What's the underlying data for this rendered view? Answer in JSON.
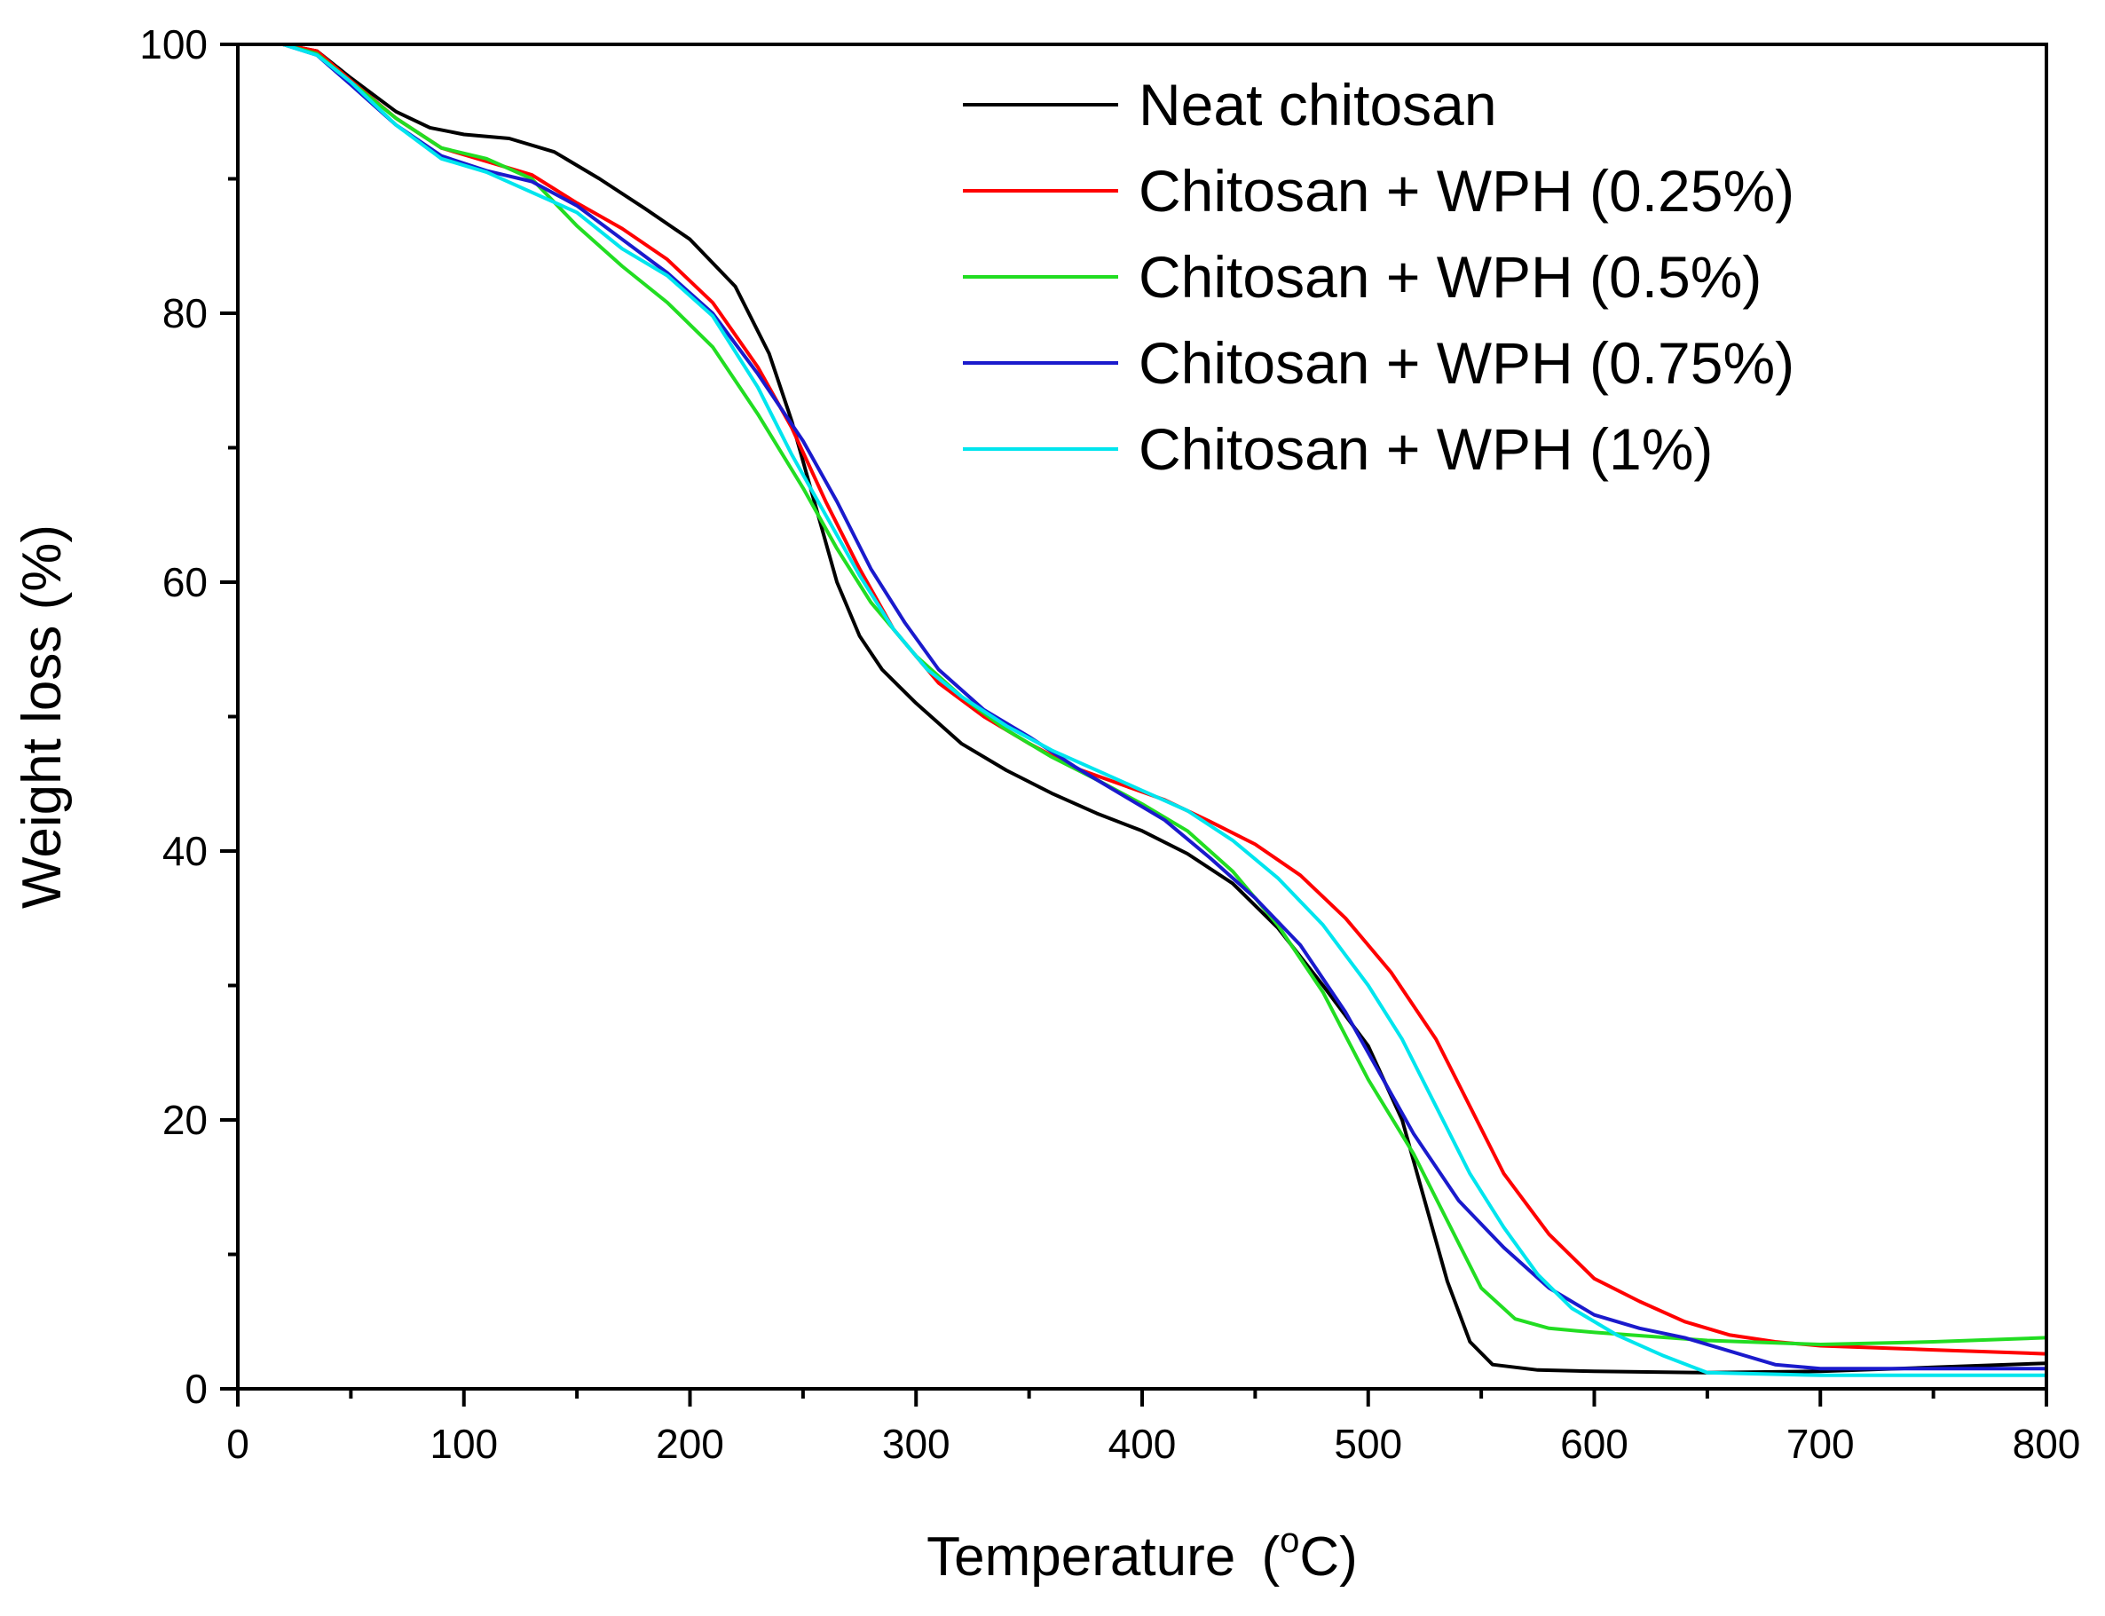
{
  "chart_data": {
    "type": "line",
    "title": "",
    "xlabel": "Temperature",
    "xlabel_unit_open": "(",
    "xlabel_unit_sup": "o",
    "xlabel_unit_main": "C",
    "xlabel_unit_close": ")",
    "ylabel": "Weight loss (%)",
    "xlim": [
      0,
      800
    ],
    "ylim": [
      0,
      100
    ],
    "x_ticks": [
      0,
      100,
      200,
      300,
      400,
      500,
      600,
      700,
      800
    ],
    "y_ticks": [
      0,
      20,
      40,
      60,
      80,
      100
    ],
    "x_tick_labels": [
      "0",
      "100",
      "200",
      "300",
      "400",
      "500",
      "600",
      "700",
      "800"
    ],
    "y_tick_labels": [
      "0",
      "20",
      "40",
      "60",
      "80",
      "100"
    ],
    "grid": false,
    "legend_position": "top-right",
    "series": [
      {
        "name": "Neat chitosan",
        "color": "#000000",
        "points": [
          [
            20,
            100
          ],
          [
            35,
            99.5
          ],
          [
            50,
            97.5
          ],
          [
            70,
            95
          ],
          [
            85,
            93.8
          ],
          [
            100,
            93.3
          ],
          [
            120,
            93
          ],
          [
            140,
            92
          ],
          [
            160,
            90
          ],
          [
            180,
            87.8
          ],
          [
            200,
            85.5
          ],
          [
            220,
            82
          ],
          [
            235,
            77
          ],
          [
            245,
            72
          ],
          [
            255,
            66
          ],
          [
            265,
            60
          ],
          [
            275,
            56
          ],
          [
            285,
            53.5
          ],
          [
            300,
            51
          ],
          [
            320,
            48
          ],
          [
            340,
            46
          ],
          [
            360,
            44.3
          ],
          [
            380,
            42.8
          ],
          [
            400,
            41.5
          ],
          [
            420,
            39.8
          ],
          [
            440,
            37.6
          ],
          [
            460,
            34.3
          ],
          [
            480,
            30
          ],
          [
            500,
            25.5
          ],
          [
            515,
            20
          ],
          [
            525,
            14
          ],
          [
            535,
            8
          ],
          [
            545,
            3.5
          ],
          [
            555,
            1.8
          ],
          [
            575,
            1.4
          ],
          [
            600,
            1.3
          ],
          [
            650,
            1.2
          ],
          [
            700,
            1.3
          ],
          [
            750,
            1.6
          ],
          [
            800,
            1.9
          ]
        ]
      },
      {
        "name": "Chitosan + WPH (0.25%)",
        "color": "#ff0000",
        "points": [
          [
            20,
            100
          ],
          [
            35,
            99.5
          ],
          [
            50,
            97.3
          ],
          [
            70,
            94.5
          ],
          [
            90,
            92.3
          ],
          [
            110,
            91.3
          ],
          [
            130,
            90.3
          ],
          [
            150,
            88.2
          ],
          [
            170,
            86.3
          ],
          [
            190,
            84
          ],
          [
            210,
            80.8
          ],
          [
            230,
            76
          ],
          [
            245,
            71.5
          ],
          [
            260,
            66
          ],
          [
            275,
            61
          ],
          [
            290,
            56.5
          ],
          [
            310,
            52.5
          ],
          [
            330,
            50
          ],
          [
            350,
            48
          ],
          [
            370,
            46.2
          ],
          [
            390,
            45
          ],
          [
            410,
            43.8
          ],
          [
            430,
            42.2
          ],
          [
            450,
            40.5
          ],
          [
            470,
            38.2
          ],
          [
            490,
            35
          ],
          [
            510,
            31
          ],
          [
            530,
            26
          ],
          [
            545,
            21
          ],
          [
            560,
            16
          ],
          [
            580,
            11.5
          ],
          [
            600,
            8.2
          ],
          [
            620,
            6.5
          ],
          [
            640,
            5
          ],
          [
            660,
            4
          ],
          [
            680,
            3.5
          ],
          [
            700,
            3.2
          ],
          [
            750,
            2.9
          ],
          [
            800,
            2.6
          ]
        ]
      },
      {
        "name": "Chitosan + WPH (0.5%)",
        "color": "#22dd22",
        "points": [
          [
            20,
            100
          ],
          [
            35,
            99.3
          ],
          [
            50,
            97.2
          ],
          [
            70,
            94.5
          ],
          [
            90,
            92.3
          ],
          [
            110,
            91.5
          ],
          [
            130,
            90
          ],
          [
            150,
            86.5
          ],
          [
            170,
            83.5
          ],
          [
            190,
            80.8
          ],
          [
            210,
            77.5
          ],
          [
            230,
            72.5
          ],
          [
            250,
            67
          ],
          [
            265,
            62.5
          ],
          [
            280,
            58.5
          ],
          [
            300,
            54.5
          ],
          [
            320,
            51.5
          ],
          [
            340,
            49
          ],
          [
            360,
            47
          ],
          [
            380,
            45.3
          ],
          [
            400,
            43.5
          ],
          [
            420,
            41.5
          ],
          [
            440,
            38.5
          ],
          [
            460,
            34.5
          ],
          [
            480,
            29.5
          ],
          [
            500,
            23
          ],
          [
            520,
            17.5
          ],
          [
            535,
            12.5
          ],
          [
            550,
            7.5
          ],
          [
            565,
            5.2
          ],
          [
            580,
            4.5
          ],
          [
            600,
            4.2
          ],
          [
            650,
            3.6
          ],
          [
            700,
            3.3
          ],
          [
            750,
            3.5
          ],
          [
            800,
            3.8
          ]
        ]
      },
      {
        "name": "Chitosan + WPH (0.75%)",
        "color": "#1a1acc",
        "points": [
          [
            20,
            100
          ],
          [
            35,
            99.2
          ],
          [
            50,
            97
          ],
          [
            70,
            94
          ],
          [
            90,
            91.7
          ],
          [
            110,
            90.6
          ],
          [
            130,
            89.8
          ],
          [
            150,
            88
          ],
          [
            170,
            85.5
          ],
          [
            190,
            83
          ],
          [
            210,
            80
          ],
          [
            230,
            75.5
          ],
          [
            250,
            70.5
          ],
          [
            265,
            66
          ],
          [
            280,
            61
          ],
          [
            295,
            57
          ],
          [
            310,
            53.5
          ],
          [
            330,
            50.5
          ],
          [
            350,
            48.5
          ],
          [
            370,
            46.3
          ],
          [
            390,
            44.3
          ],
          [
            410,
            42.3
          ],
          [
            430,
            39.5
          ],
          [
            450,
            36.5
          ],
          [
            470,
            33
          ],
          [
            490,
            28
          ],
          [
            505,
            23.5
          ],
          [
            520,
            19
          ],
          [
            540,
            14
          ],
          [
            560,
            10.5
          ],
          [
            580,
            7.5
          ],
          [
            600,
            5.5
          ],
          [
            620,
            4.5
          ],
          [
            640,
            3.8
          ],
          [
            660,
            2.8
          ],
          [
            680,
            1.8
          ],
          [
            700,
            1.5
          ],
          [
            750,
            1.5
          ],
          [
            800,
            1.5
          ]
        ]
      },
      {
        "name": "Chitosan + WPH (1%)",
        "color": "#00e5ee",
        "points": [
          [
            20,
            100
          ],
          [
            35,
            99.2
          ],
          [
            50,
            97.2
          ],
          [
            70,
            94
          ],
          [
            90,
            91.5
          ],
          [
            110,
            90.5
          ],
          [
            130,
            89
          ],
          [
            150,
            87.5
          ],
          [
            170,
            84.8
          ],
          [
            190,
            82.8
          ],
          [
            210,
            79.8
          ],
          [
            230,
            74.5
          ],
          [
            245,
            69.5
          ],
          [
            260,
            65
          ],
          [
            275,
            60.5
          ],
          [
            290,
            56.5
          ],
          [
            305,
            53.5
          ],
          [
            320,
            51.5
          ],
          [
            340,
            49.3
          ],
          [
            360,
            47.5
          ],
          [
            380,
            46
          ],
          [
            400,
            44.5
          ],
          [
            420,
            43
          ],
          [
            440,
            40.8
          ],
          [
            460,
            38
          ],
          [
            480,
            34.5
          ],
          [
            500,
            30
          ],
          [
            515,
            26
          ],
          [
            530,
            21
          ],
          [
            545,
            16
          ],
          [
            560,
            12
          ],
          [
            575,
            8.5
          ],
          [
            590,
            6
          ],
          [
            610,
            4
          ],
          [
            630,
            2.5
          ],
          [
            650,
            1.2
          ],
          [
            700,
            1
          ],
          [
            750,
            1
          ],
          [
            800,
            1
          ]
        ]
      }
    ]
  }
}
